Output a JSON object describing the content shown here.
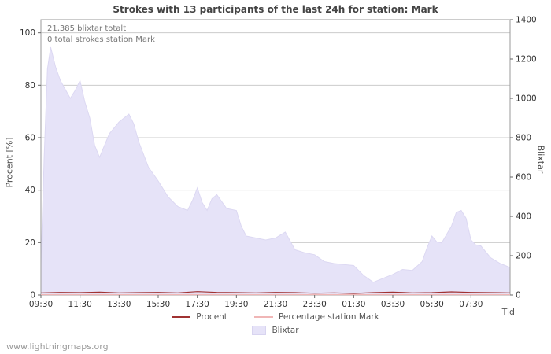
{
  "page": {
    "watermark": "www.lightningmaps.org"
  },
  "chart": {
    "title": "Strokes with 13 participants of the last 24h for station: Mark",
    "annotation_total": "21,385 blixtar totalt",
    "annotation_station": "0 total strokes station Mark",
    "left_axis_label": "Procent   [%]",
    "right_axis_label": "Blixtar",
    "x_axis_label": "Tid",
    "legend": {
      "procent": "Procent",
      "percentage": "Percentage station Mark",
      "blixtar": "Blixtar"
    },
    "colors": {
      "procent_line": "#a03232",
      "percentage_line": "#f0b6b6",
      "blixtar_area": "#e6e3f8",
      "gridline": "#cccccc",
      "frame": "#999999"
    }
  },
  "chart_data": {
    "type": "area",
    "title": "Strokes with 13 participants of the last 24h for station: Mark",
    "xlabel": "Tid",
    "x_range_minutes": [
      0,
      1440
    ],
    "x_ticks": {
      "minutes": [
        0,
        120,
        240,
        360,
        480,
        600,
        720,
        840,
        960,
        1080,
        1200,
        1320
      ],
      "labels": [
        "09:30",
        "11:30",
        "13:30",
        "15:30",
        "17:30",
        "19:30",
        "21:30",
        "23:30",
        "01:30",
        "03:30",
        "05:30",
        "07:30"
      ]
    },
    "left_axis": {
      "label": "Procent [%]",
      "range": [
        0,
        100
      ],
      "ticks": [
        0,
        20,
        40,
        60,
        80,
        100
      ]
    },
    "right_axis": {
      "label": "Blixtar",
      "range": [
        0,
        1400
      ],
      "ticks": [
        0,
        200,
        400,
        600,
        800,
        1000,
        1200,
        1400
      ]
    },
    "grid": true,
    "legend_position": "bottom",
    "annotations": [
      "21,385 blixtar totalt",
      "0 total strokes station Mark"
    ],
    "series": [
      {
        "name": "Blixtar",
        "type": "area",
        "axis": "right",
        "color": "#e6e3f8",
        "x": [
          0,
          10,
          20,
          30,
          45,
          60,
          90,
          105,
          120,
          135,
          150,
          165,
          180,
          210,
          240,
          270,
          285,
          300,
          330,
          360,
          390,
          420,
          450,
          465,
          480,
          495,
          510,
          525,
          540,
          570,
          600,
          615,
          630,
          660,
          690,
          720,
          750,
          780,
          810,
          840,
          870,
          900,
          930,
          960,
          990,
          1020,
          1050,
          1080,
          1110,
          1140,
          1170,
          1185,
          1200,
          1215,
          1230,
          1260,
          1275,
          1290,
          1305,
          1320,
          1335,
          1350,
          1380,
          1410,
          1440
        ],
        "values": [
          150,
          700,
          1150,
          1260,
          1160,
          1090,
          1000,
          1040,
          1090,
          980,
          900,
          760,
          700,
          820,
          880,
          920,
          870,
          780,
          650,
          580,
          500,
          450,
          430,
          480,
          545,
          470,
          430,
          490,
          510,
          440,
          430,
          350,
          300,
          290,
          280,
          290,
          320,
          230,
          215,
          205,
          170,
          160,
          155,
          150,
          100,
          65,
          85,
          105,
          130,
          125,
          170,
          240,
          300,
          270,
          265,
          350,
          420,
          430,
          390,
          280,
          255,
          250,
          190,
          160,
          140
        ]
      },
      {
        "name": "Procent",
        "type": "line",
        "axis": "left",
        "color": "#a03232",
        "x": [
          0,
          60,
          120,
          180,
          240,
          300,
          360,
          420,
          480,
          540,
          600,
          660,
          720,
          780,
          840,
          900,
          960,
          1020,
          1080,
          1140,
          1200,
          1260,
          1320,
          1380,
          1440
        ],
        "values": [
          0.8,
          1.0,
          0.9,
          1.1,
          0.8,
          0.9,
          1.0,
          0.8,
          1.3,
          1.0,
          0.9,
          0.8,
          1.0,
          0.9,
          0.7,
          0.8,
          0.6,
          0.9,
          1.1,
          0.8,
          0.9,
          1.2,
          1.0,
          0.9,
          0.8
        ]
      },
      {
        "name": "Percentage station Mark",
        "type": "line",
        "axis": "left",
        "color": "#f0b6b6",
        "x": [
          0,
          60,
          120,
          180,
          240,
          300,
          360,
          420,
          480,
          540,
          600,
          660,
          720,
          780,
          840,
          900,
          960,
          1020,
          1080,
          1140,
          1200,
          1260,
          1320,
          1380,
          1440
        ],
        "values": [
          0.15,
          0.15,
          0.15,
          0.15,
          0.15,
          0.15,
          0.15,
          0.15,
          0.15,
          0.15,
          0.15,
          0.15,
          0.15,
          0.15,
          0.15,
          0.15,
          0.15,
          0.15,
          0.15,
          0.15,
          0.15,
          0.15,
          0.15,
          0.15,
          0.15
        ]
      }
    ]
  }
}
